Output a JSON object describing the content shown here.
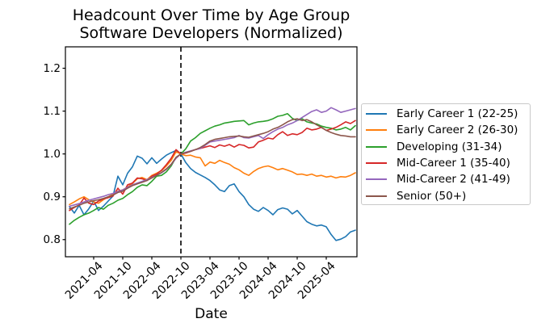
{
  "chart_data": {
    "type": "line",
    "title": "Headcount Over Time by Age Group",
    "subtitle": "Software Developers (Normalized)",
    "xlabel": "Date",
    "ylabel": "",
    "grid": false,
    "legend_position": "right of plot",
    "ylim": [
      0.76,
      1.25
    ],
    "y_ticks": [
      0.8,
      0.9,
      1.0,
      1.1,
      1.2
    ],
    "x_tick_labels": [
      "2021-04",
      "2021-10",
      "2022-04",
      "2022-10",
      "2023-04",
      "2023-10",
      "2024-04",
      "2024-10",
      "2025-04"
    ],
    "x": [
      "2020-11",
      "2020-12",
      "2021-01",
      "2021-02",
      "2021-03",
      "2021-04",
      "2021-05",
      "2021-06",
      "2021-07",
      "2021-08",
      "2021-09",
      "2021-10",
      "2021-11",
      "2021-12",
      "2022-01",
      "2022-02",
      "2022-03",
      "2022-04",
      "2022-05",
      "2022-06",
      "2022-07",
      "2022-08",
      "2022-09",
      "2022-10",
      "2022-11",
      "2022-12",
      "2023-01",
      "2023-02",
      "2023-03",
      "2023-04",
      "2023-05",
      "2023-06",
      "2023-07",
      "2023-08",
      "2023-09",
      "2023-10",
      "2023-11",
      "2023-12",
      "2024-01",
      "2024-02",
      "2024-03",
      "2024-04",
      "2024-05",
      "2024-06",
      "2024-07",
      "2024-08",
      "2024-09",
      "2024-10",
      "2024-11",
      "2024-12",
      "2025-01",
      "2025-02",
      "2025-03",
      "2025-04",
      "2025-05",
      "2025-06",
      "2025-07",
      "2025-08",
      "2025-09",
      "2025-10"
    ],
    "vline": {
      "x": "2022-10",
      "style": "dashed",
      "color": "#000000"
    },
    "normalization_note": "all series equal 1.0 at the dashed vertical line",
    "axis_color": "#000000",
    "series": [
      {
        "name": "Early Career 1 (22-25)",
        "color": "#1f77b4",
        "values": [
          0.877,
          0.862,
          0.88,
          0.858,
          0.872,
          0.89,
          0.868,
          0.878,
          0.89,
          0.902,
          0.948,
          0.928,
          0.955,
          0.97,
          0.995,
          0.99,
          0.977,
          0.991,
          0.978,
          0.988,
          0.997,
          1.003,
          1.008,
          1.0,
          0.98,
          0.966,
          0.957,
          0.951,
          0.945,
          0.938,
          0.928,
          0.916,
          0.912,
          0.926,
          0.93,
          0.912,
          0.9,
          0.882,
          0.871,
          0.866,
          0.875,
          0.868,
          0.858,
          0.87,
          0.874,
          0.871,
          0.86,
          0.868,
          0.855,
          0.842,
          0.836,
          0.832,
          0.834,
          0.83,
          0.812,
          0.798,
          0.801,
          0.807,
          0.818,
          0.822
        ]
      },
      {
        "name": "Early Career 2 (26-30)",
        "color": "#ff7f0e",
        "values": [
          0.882,
          0.888,
          0.895,
          0.9,
          0.893,
          0.888,
          0.885,
          0.893,
          0.9,
          0.906,
          0.913,
          0.916,
          0.923,
          0.931,
          0.942,
          0.945,
          0.94,
          0.95,
          0.955,
          0.961,
          0.972,
          0.985,
          1.005,
          1.0,
          0.996,
          0.997,
          0.993,
          0.991,
          0.972,
          0.981,
          0.978,
          0.985,
          0.98,
          0.976,
          0.968,
          0.963,
          0.955,
          0.95,
          0.959,
          0.966,
          0.97,
          0.972,
          0.968,
          0.963,
          0.966,
          0.962,
          0.958,
          0.952,
          0.953,
          0.95,
          0.953,
          0.948,
          0.95,
          0.946,
          0.948,
          0.944,
          0.947,
          0.946,
          0.95,
          0.956
        ]
      },
      {
        "name": "Developing (31-34)",
        "color": "#2ca02c",
        "values": [
          0.836,
          0.845,
          0.852,
          0.858,
          0.862,
          0.868,
          0.875,
          0.871,
          0.88,
          0.885,
          0.892,
          0.896,
          0.905,
          0.912,
          0.922,
          0.928,
          0.926,
          0.936,
          0.948,
          0.95,
          0.958,
          0.972,
          0.992,
          1.0,
          1.012,
          1.03,
          1.038,
          1.048,
          1.054,
          1.06,
          1.065,
          1.068,
          1.072,
          1.074,
          1.076,
          1.077,
          1.078,
          1.068,
          1.072,
          1.075,
          1.076,
          1.078,
          1.082,
          1.088,
          1.09,
          1.094,
          1.083,
          1.078,
          1.082,
          1.075,
          1.072,
          1.07,
          1.065,
          1.062,
          1.06,
          1.056,
          1.058,
          1.062,
          1.056,
          1.066
        ]
      },
      {
        "name": "Mid-Career 1 (35-40)",
        "color": "#d62728",
        "values": [
          0.868,
          0.875,
          0.881,
          0.897,
          0.885,
          0.882,
          0.89,
          0.895,
          0.898,
          0.902,
          0.92,
          0.906,
          0.928,
          0.932,
          0.944,
          0.942,
          0.938,
          0.948,
          0.953,
          0.962,
          0.975,
          0.99,
          1.01,
          1.0,
          1.002,
          1.006,
          1.01,
          1.013,
          1.016,
          1.019,
          1.015,
          1.021,
          1.018,
          1.022,
          1.016,
          1.022,
          1.02,
          1.014,
          1.016,
          1.028,
          1.032,
          1.037,
          1.035,
          1.045,
          1.052,
          1.043,
          1.047,
          1.045,
          1.05,
          1.06,
          1.056,
          1.058,
          1.062,
          1.055,
          1.058,
          1.062,
          1.068,
          1.075,
          1.071,
          1.078
        ]
      },
      {
        "name": "Mid-Career 2 (41-49)",
        "color": "#9467bd",
        "values": [
          0.878,
          0.881,
          0.884,
          0.888,
          0.892,
          0.895,
          0.898,
          0.901,
          0.905,
          0.908,
          0.912,
          0.916,
          0.922,
          0.928,
          0.932,
          0.936,
          0.94,
          0.945,
          0.95,
          0.956,
          0.964,
          0.975,
          0.99,
          1.0,
          1.004,
          1.007,
          1.01,
          1.013,
          1.02,
          1.028,
          1.03,
          1.032,
          1.034,
          1.036,
          1.038,
          1.043,
          1.038,
          1.037,
          1.04,
          1.043,
          1.036,
          1.045,
          1.052,
          1.058,
          1.062,
          1.068,
          1.072,
          1.078,
          1.085,
          1.092,
          1.099,
          1.103,
          1.097,
          1.1,
          1.108,
          1.103,
          1.097,
          1.1,
          1.103,
          1.106
        ]
      },
      {
        "name": "Senior (50+)",
        "color": "#8c564b",
        "values": [
          0.872,
          0.876,
          0.88,
          0.885,
          0.888,
          0.891,
          0.893,
          0.896,
          0.9,
          0.904,
          0.91,
          0.913,
          0.92,
          0.926,
          0.93,
          0.934,
          0.938,
          0.944,
          0.95,
          0.957,
          0.965,
          0.976,
          0.992,
          1.0,
          1.003,
          1.006,
          1.01,
          1.015,
          1.022,
          1.03,
          1.034,
          1.036,
          1.038,
          1.04,
          1.041,
          1.042,
          1.04,
          1.039,
          1.042,
          1.045,
          1.048,
          1.052,
          1.058,
          1.062,
          1.068,
          1.075,
          1.08,
          1.082,
          1.078,
          1.08,
          1.075,
          1.068,
          1.062,
          1.055,
          1.05,
          1.046,
          1.043,
          1.042,
          1.04,
          1.04
        ]
      }
    ]
  }
}
